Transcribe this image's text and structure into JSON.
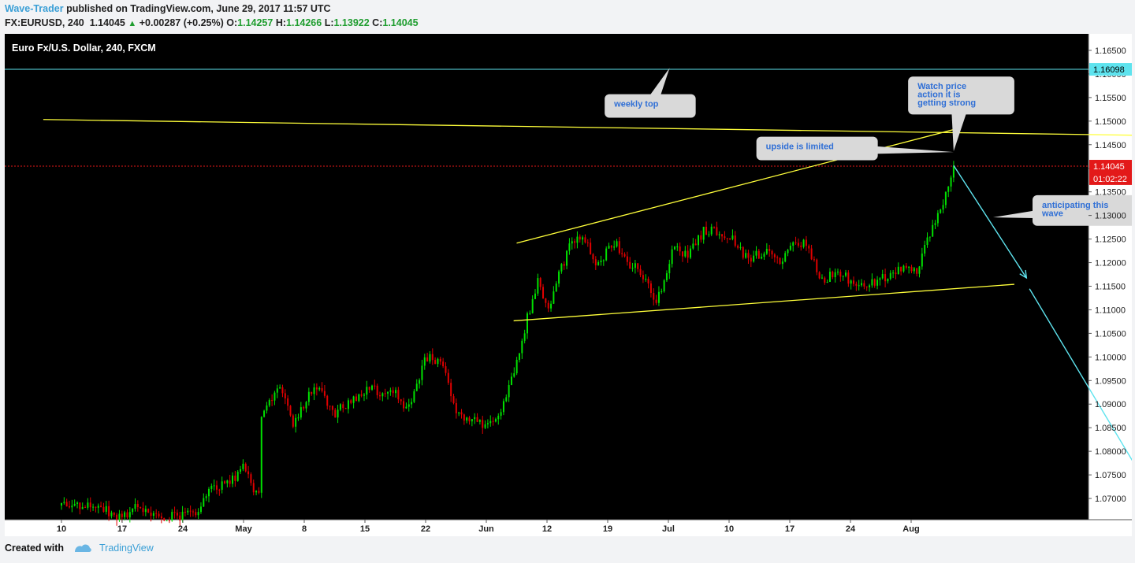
{
  "header": {
    "author": "Wave-Trader",
    "published": "published on TradingView.com, June 29, 2017 11:57 UTC",
    "symbol": "FX:EURUSD, 240",
    "last": "1.14045",
    "change": "+0.00287 (+0.25%)",
    "o_label": "O:",
    "o_value": "1.14257",
    "h_label": "H:",
    "h_value": "1.14266",
    "l_label": "L:",
    "l_value": "1.13922",
    "c_label": "C:",
    "c_value": "1.14045"
  },
  "footer": {
    "created_with": "Created with",
    "brand": "TradingView"
  },
  "chart_data": {
    "type": "candlestick",
    "title": "Euro Fx/U.S. Dollar, 240, FXCM",
    "background": "#000000",
    "up_color": "#00e000",
    "down_color": "#e00000",
    "grid": false,
    "y_ticks": [
      "1.16500",
      "1.16000",
      "1.15500",
      "1.15000",
      "1.14500",
      "1.14000",
      "1.13500",
      "1.13000",
      "1.12500",
      "1.12000",
      "1.11500",
      "1.11000",
      "1.10500",
      "1.10000",
      "1.09500",
      "1.09000",
      "1.08500",
      "1.08000",
      "1.07500",
      "1.07000"
    ],
    "ylim": [
      1.0655,
      1.1685
    ],
    "x_ticks": [
      "10",
      "17",
      "24",
      "May",
      "8",
      "15",
      "22",
      "Jun",
      "12",
      "19",
      "Jul",
      "10",
      "17",
      "24",
      "Aug"
    ],
    "price_labels": [
      {
        "value": "1.16098",
        "price": 1.16098,
        "color": "#5ee3ee"
      },
      {
        "value": "1.14045",
        "price": 1.14045,
        "color": "#e31919"
      },
      {
        "value": "01:02:22",
        "price": 1.1378,
        "color": "#e31919"
      }
    ],
    "trendlines": [
      {
        "color": "#ffff3a",
        "points": [
          [
            -0.3,
            1.15034
          ],
          [
            25.1,
            1.14563
          ]
        ]
      },
      {
        "color": "#ffff3a",
        "points": [
          [
            7.5,
            1.12413
          ],
          [
            14.8,
            1.14854
          ]
        ]
      },
      {
        "color": "#ffff3a",
        "points": [
          [
            7.45,
            1.10766
          ],
          [
            15.7,
            1.1154
          ]
        ]
      }
    ],
    "horizontal_lines": [
      {
        "price": 1.16098,
        "color": "#5ee3ee"
      },
      {
        "price": 1.14045,
        "color": "#e31919"
      }
    ],
    "arrows": [
      {
        "color": "#5ee3ee",
        "from": [
          14.7,
          1.1406
        ],
        "to": [
          15.9,
          1.11676
        ],
        "head": true
      },
      {
        "color": "#5ee3ee",
        "from": [
          15.95,
          1.11445
        ],
        "to": [
          18.15,
          1.06716
        ],
        "head": false
      }
    ],
    "callouts": [
      {
        "text": [
          "weekly top"
        ],
        "box_x": [
          8.95,
          10.45
        ],
        "box_y": [
          1.1557,
          1.15073
        ],
        "pointer": [
          10.02,
          1.16128
        ]
      },
      {
        "text": [
          "Watch price",
          "action it is",
          "getting strong"
        ],
        "box_x": [
          13.95,
          15.7
        ],
        "box_y": [
          1.15945,
          1.1514
        ],
        "pointer": [
          14.7,
          1.14363
        ]
      },
      {
        "text": [
          "upside is limited"
        ],
        "box_x": [
          11.45,
          13.45
        ],
        "box_y": [
          1.1467,
          1.1417
        ],
        "pointer": [
          14.7,
          1.14343
        ]
      },
      {
        "text": [
          "anticipating this",
          "wave"
        ],
        "box_x": [
          16.0,
          17.85
        ],
        "box_y": [
          1.1343,
          1.1278
        ],
        "pointer": [
          15.35,
          1.1296
        ]
      }
    ],
    "candle_path": [
      [
        0.0,
        1.0685
      ],
      [
        0.5,
        1.069
      ],
      [
        1.0,
        1.066
      ],
      [
        1.2,
        1.0685
      ],
      [
        1.5,
        1.066
      ],
      [
        2.2,
        1.0665
      ],
      [
        2.45,
        1.072
      ],
      [
        2.8,
        1.0735
      ],
      [
        3.0,
        1.0775
      ],
      [
        3.25,
        1.0695
      ],
      [
        3.3,
        1.088
      ],
      [
        3.6,
        1.094
      ],
      [
        3.8,
        1.086
      ],
      [
        4.2,
        1.094
      ],
      [
        4.5,
        1.088
      ],
      [
        5.0,
        1.093
      ],
      [
        5.5,
        1.0925
      ],
      [
        5.7,
        1.088
      ],
      [
        6.0,
        1.1
      ],
      [
        6.3,
        1.0985
      ],
      [
        6.5,
        1.088
      ],
      [
        7.0,
        1.0855
      ],
      [
        7.2,
        1.087
      ],
      [
        7.45,
        1.097
      ],
      [
        7.7,
        1.1095
      ],
      [
        7.85,
        1.1165
      ],
      [
        8.0,
        1.11
      ],
      [
        8.4,
        1.1245
      ],
      [
        8.6,
        1.1255
      ],
      [
        8.8,
        1.119
      ],
      [
        9.1,
        1.1245
      ],
      [
        9.35,
        1.12
      ],
      [
        9.5,
        1.1185
      ],
      [
        9.8,
        1.1115
      ],
      [
        10.1,
        1.1235
      ],
      [
        10.3,
        1.1215
      ],
      [
        10.6,
        1.127
      ],
      [
        11.0,
        1.126
      ],
      [
        11.3,
        1.1205
      ],
      [
        11.6,
        1.1225
      ],
      [
        11.85,
        1.1195
      ],
      [
        12.1,
        1.1245
      ],
      [
        12.3,
        1.124
      ],
      [
        12.5,
        1.1155
      ],
      [
        12.8,
        1.1185
      ],
      [
        13.1,
        1.1145
      ],
      [
        13.5,
        1.1165
      ],
      [
        13.8,
        1.1185
      ],
      [
        14.1,
        1.118
      ],
      [
        14.35,
        1.1275
      ],
      [
        14.5,
        1.1315
      ],
      [
        14.7,
        1.1404
      ]
    ],
    "candle_seed": 20170629,
    "candle_count": 340
  }
}
